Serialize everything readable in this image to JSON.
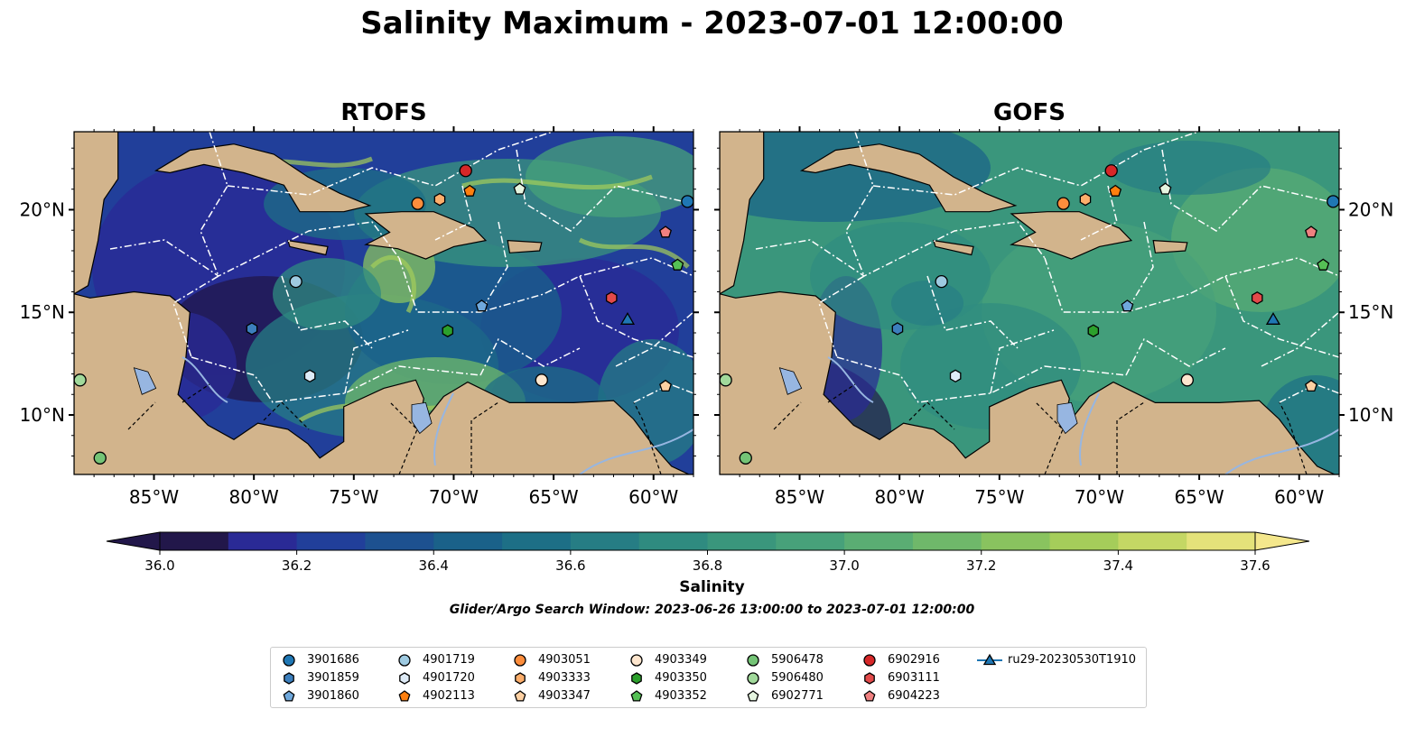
{
  "title": "Salinity Maximum - 2023-07-01 12:00:00",
  "panels": [
    {
      "id": "rtofs",
      "title": "RTOFS"
    },
    {
      "id": "gofs",
      "title": "GOFS"
    }
  ],
  "axes": {
    "x_ticks": [
      "85°W",
      "80°W",
      "75°W",
      "70°W",
      "65°W",
      "60°W"
    ],
    "x_tick_values": [
      -85,
      -80,
      -75,
      -70,
      -65,
      -60
    ],
    "y_ticks": [
      "20°N",
      "15°N",
      "10°N"
    ],
    "y_tick_values": [
      20,
      15,
      10
    ],
    "lon_range": [
      -89,
      -58
    ],
    "lat_range": [
      7.1,
      23.8
    ]
  },
  "colorbar": {
    "label": "Salinity",
    "ticks": [
      "36.0",
      "36.2",
      "36.4",
      "36.6",
      "36.8",
      "37.0",
      "37.2",
      "37.4",
      "37.6"
    ],
    "range": [
      36.0,
      37.6
    ],
    "extend": "both",
    "colormap": [
      "#22174a",
      "#2a2a95",
      "#213f9a",
      "#1d5190",
      "#1a6189",
      "#1d6f86",
      "#267d84",
      "#2f8b80",
      "#3a967c",
      "#47a17a",
      "#5aad73",
      "#6fb86a",
      "#89c35f",
      "#a5cd5a",
      "#c4d764",
      "#e4e27a",
      "#f4e78c"
    ]
  },
  "search_window": "Glider/Argo Search Window: 2023-06-26 13:00:00 to 2023-07-01 12:00:00",
  "chart_data": {
    "type": "scatter",
    "title": "Salinity Maximum - 2023-07-01 12:00:00",
    "xlabel": "",
    "ylabel": "",
    "xlim": [
      -89,
      -58
    ],
    "ylim": [
      7.1,
      23.8
    ],
    "grid": false,
    "legend_position": "bottom",
    "series": [
      {
        "name": "3901686",
        "marker": "circle",
        "color": "#1f77b4",
        "x": [
          -58.3
        ],
        "y": [
          20.4
        ]
      },
      {
        "name": "3901859",
        "marker": "hexagon",
        "color": "#3c7fbd",
        "x": [
          -80.1
        ],
        "y": [
          14.2
        ]
      },
      {
        "name": "3901860",
        "marker": "pentagon",
        "color": "#6fa8dc",
        "x": [
          -68.6
        ],
        "y": [
          15.3
        ]
      },
      {
        "name": "4901719",
        "marker": "circle",
        "color": "#9ecae1",
        "x": [
          -77.9
        ],
        "y": [
          16.5
        ]
      },
      {
        "name": "4901720",
        "marker": "hexagon",
        "color": "#deebf7",
        "x": [
          -77.2
        ],
        "y": [
          11.9
        ]
      },
      {
        "name": "4902113",
        "marker": "pentagon",
        "color": "#ff7f0e",
        "x": [
          -69.2
        ],
        "y": [
          20.9
        ]
      },
      {
        "name": "4903051",
        "marker": "circle",
        "color": "#fd8d3c",
        "x": [
          -71.8
        ],
        "y": [
          20.3
        ]
      },
      {
        "name": "4903333",
        "marker": "hexagon",
        "color": "#fdae6b",
        "x": [
          -70.7
        ],
        "y": [
          20.5
        ]
      },
      {
        "name": "4903347",
        "marker": "pentagon",
        "color": "#fdd0a2",
        "x": [
          -59.4
        ],
        "y": [
          11.4
        ]
      },
      {
        "name": "4903349",
        "marker": "circle",
        "color": "#fee6ce",
        "x": [
          -65.6
        ],
        "y": [
          11.7
        ]
      },
      {
        "name": "4903350",
        "marker": "hexagon",
        "color": "#2ca02c",
        "x": [
          -70.3
        ],
        "y": [
          14.1
        ]
      },
      {
        "name": "4903352",
        "marker": "pentagon",
        "color": "#55c055",
        "x": [
          -58.8
        ],
        "y": [
          17.3
        ]
      },
      {
        "name": "5906478",
        "marker": "circle",
        "color": "#74c476",
        "x": [
          -87.7
        ],
        "y": [
          7.9
        ]
      },
      {
        "name": "5906480",
        "marker": "circle",
        "color": "#a1d99b",
        "x": [
          -88.7
        ],
        "y": [
          11.7
        ]
      },
      {
        "name": "6902771",
        "marker": "pentagon",
        "color": "#e5f5e0",
        "x": [
          -66.7
        ],
        "y": [
          21.0
        ]
      },
      {
        "name": "6902916",
        "marker": "circle",
        "color": "#d62728",
        "x": [
          -69.4
        ],
        "y": [
          21.9
        ]
      },
      {
        "name": "6903111",
        "marker": "hexagon",
        "color": "#e34a4a",
        "x": [
          -62.1
        ],
        "y": [
          15.7
        ]
      },
      {
        "name": "6904223",
        "marker": "pentagon",
        "color": "#f08080",
        "x": [
          -59.4
        ],
        "y": [
          18.9
        ]
      },
      {
        "name": "ru29-20230530T1910",
        "marker": "triangle",
        "color": "#1f77b4",
        "x": [
          -61.3
        ],
        "y": [
          14.6
        ]
      }
    ]
  }
}
